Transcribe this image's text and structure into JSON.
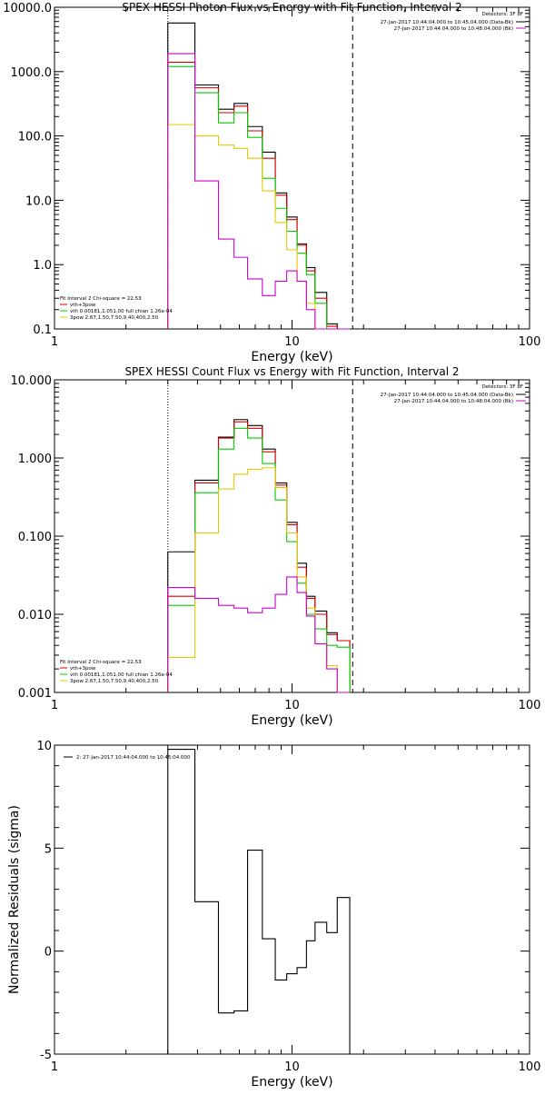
{
  "chart_data": [
    {
      "type": "line",
      "title": "SPEX HESSI Photon Flux vs Energy with Fit Function, Interval 2",
      "xlabel": "Energy (keV)",
      "ylabel": "",
      "xscale": "log",
      "yscale": "log",
      "xlim": [
        1,
        100
      ],
      "ylim": [
        0.1,
        10000
      ],
      "xticks": [
        1,
        10,
        100
      ],
      "xtick_labels": [
        "1",
        "10",
        "100"
      ],
      "yticks": [
        0.1,
        1,
        10,
        100,
        1000,
        10000
      ],
      "ytick_labels": [
        "0.1",
        "1.0",
        "10.0",
        "100.0",
        "1000.0",
        "10000.0"
      ],
      "fit_range_low": 3.0,
      "fit_range_high": 18.0,
      "detectors": "Detectors: 3F 8F",
      "legend_right": [
        {
          "text": "27-Jan-2017 10:44:04.000 to 10:45:04.000 (Data-Bk)",
          "color": "#000000"
        },
        {
          "text": "27-Jan-2017 10:44:04.000 to 10:48:04.000 (Bk)",
          "color": "#cc00cc"
        }
      ],
      "legend_left_header": "Fit Interval 2   Chi-square = 22.53",
      "legend_left": [
        {
          "text": "vth+3pow",
          "color": "#d40000"
        },
        {
          "text": "vth 0.00181,1.051,00  full chian 1.26e-04",
          "color": "#00cc00"
        },
        {
          "text": "3pow 2.67,1.50,7.50,9.40,400,2.50",
          "color": "#e6c800"
        }
      ],
      "bin_edges": [
        3.0,
        3.9,
        4.9,
        5.7,
        6.5,
        7.5,
        8.5,
        9.5,
        10.5,
        11.5,
        12.5,
        14.0,
        15.5,
        17.5
      ],
      "series": [
        {
          "color": "#000000",
          "values": [
            5700,
            620,
            260,
            320,
            140,
            56,
            13,
            5.5,
            2.1,
            0.9,
            0.37,
            0.12,
            0.1
          ]
        },
        {
          "color": "#d40000",
          "values": [
            1400,
            560,
            230,
            290,
            120,
            45,
            12,
            5,
            2,
            0.8,
            0.3,
            0.11,
            0.1
          ]
        },
        {
          "color": "#00cc00",
          "values": [
            1200,
            470,
            160,
            230,
            95,
            22,
            7.5,
            3.3,
            1.5,
            0.7,
            0.25,
            0.1,
            0.1
          ]
        },
        {
          "color": "#e6c800",
          "values": [
            150,
            100,
            72,
            64,
            45,
            14,
            4.5,
            1.7,
            0.55,
            0.25,
            0.1,
            0.1,
            0.1
          ]
        },
        {
          "color": "#cc00cc",
          "values": [
            1900,
            20,
            2.5,
            1.3,
            0.6,
            0.33,
            0.55,
            0.8,
            0.55,
            0.2,
            0.1,
            0.1,
            0.1
          ]
        }
      ]
    },
    {
      "type": "line",
      "title": "SPEX HESSI Count Flux vs Energy with Fit Function, Interval 2",
      "xlabel": "Energy (keV)",
      "ylabel": "",
      "xscale": "log",
      "yscale": "log",
      "xlim": [
        1,
        100
      ],
      "ylim": [
        0.001,
        10
      ],
      "xticks": [
        1,
        10,
        100
      ],
      "xtick_labels": [
        "1",
        "10",
        "100"
      ],
      "yticks": [
        0.001,
        0.01,
        0.1,
        1,
        10
      ],
      "ytick_labels": [
        "0.001",
        "0.010",
        "0.100",
        "1.000",
        "10.000"
      ],
      "fit_range_low": 3.0,
      "fit_range_high": 18.0,
      "detectors": "Detectors: 3F 8F",
      "legend_right": [
        {
          "text": "27-Jan-2017 10:44:04.000 to 10:45:04.000 (Data-Bk)",
          "color": "#000000"
        },
        {
          "text": "27-Jan-2017 10:44:04.000 to 10:48:04.000 (Bk)",
          "color": "#cc00cc"
        }
      ],
      "legend_left_header": "Fit Interval 2   Chi-square = 22.53",
      "legend_left": [
        {
          "text": "vth+3pow",
          "color": "#d40000"
        },
        {
          "text": "vth 0.00181,1.051,00  full chian 1.26e-04",
          "color": "#00cc00"
        },
        {
          "text": "3pow 2.67,1.50,7.50,9.40,400,2.50",
          "color": "#e6c800"
        }
      ],
      "bin_edges": [
        3.0,
        3.9,
        4.9,
        5.7,
        6.5,
        7.5,
        8.5,
        9.5,
        10.5,
        11.5,
        12.5,
        14.0,
        15.5,
        17.5
      ],
      "series": [
        {
          "color": "#000000",
          "values": [
            0.063,
            0.52,
            1.85,
            3.1,
            2.6,
            1.3,
            0.48,
            0.15,
            0.045,
            0.017,
            0.011,
            0.0058,
            0.0046
          ]
        },
        {
          "color": "#d40000",
          "values": [
            0.017,
            0.48,
            1.8,
            2.9,
            2.4,
            1.2,
            0.45,
            0.14,
            0.04,
            0.016,
            0.01,
            0.0055,
            0.0046
          ]
        },
        {
          "color": "#00cc00",
          "values": [
            0.013,
            0.36,
            1.3,
            2.4,
            1.8,
            0.85,
            0.29,
            0.085,
            0.025,
            0.01,
            0.0065,
            0.004,
            0.0038
          ]
        },
        {
          "color": "#e6c800",
          "values": [
            0.0028,
            0.11,
            0.4,
            0.62,
            0.72,
            0.75,
            0.42,
            0.11,
            0.03,
            0.012,
            0.0042,
            0.0022,
            0.001
          ]
        },
        {
          "color": "#cc00cc",
          "values": [
            0.022,
            0.016,
            0.013,
            0.012,
            0.0105,
            0.012,
            0.018,
            0.03,
            0.019,
            0.0095,
            0.0042,
            0.002,
            0.001
          ]
        }
      ]
    },
    {
      "type": "line",
      "title": "",
      "xlabel": "Energy (keV)",
      "ylabel": "Normalized Residuals (sigma)",
      "xscale": "log",
      "yscale": "linear",
      "xlim": [
        1,
        100
      ],
      "ylim": [
        -5,
        10
      ],
      "xticks": [
        1,
        10,
        100
      ],
      "xtick_labels": [
        "1",
        "10",
        "100"
      ],
      "yticks": [
        -5,
        0,
        5,
        10
      ],
      "ytick_labels": [
        "-5",
        "0",
        "5",
        "10"
      ],
      "legend_left_header": "",
      "legend_left": [
        {
          "text": "2: 27-Jan-2017 10:44:04.000 to 10:45:04.000",
          "color": "#000000"
        }
      ],
      "bin_edges": [
        3.0,
        3.9,
        4.9,
        5.7,
        6.5,
        7.5,
        8.5,
        9.5,
        10.5,
        11.5,
        12.5,
        14.0,
        15.5,
        17.5
      ],
      "series": [
        {
          "color": "#000000",
          "values": [
            9.8,
            2.4,
            -3.0,
            -2.9,
            4.9,
            0.6,
            -1.4,
            -1.1,
            -0.8,
            0.5,
            1.4,
            0.9,
            2.6
          ]
        }
      ]
    }
  ]
}
